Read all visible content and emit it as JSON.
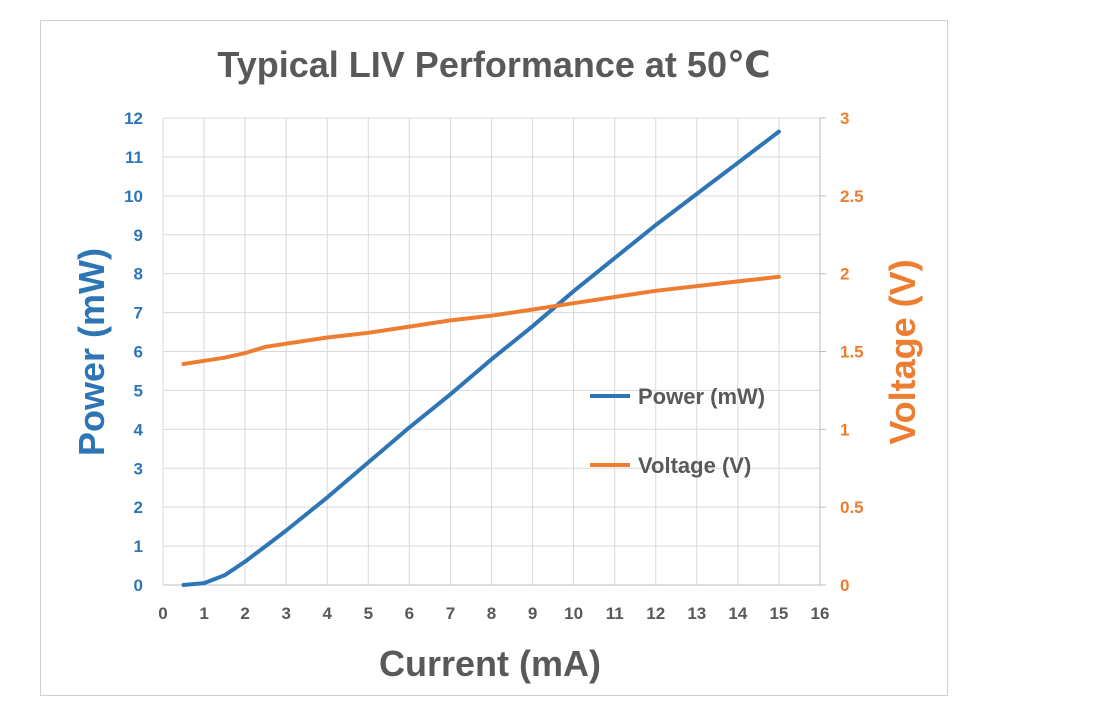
{
  "chart_data": {
    "type": "line",
    "title": "Typical LIV Performance at 50℃",
    "xlabel": "Current (mA)",
    "ylabel_left": "Power (mW)",
    "ylabel_right": "Voltage (V)",
    "xlim": [
      0,
      16
    ],
    "ylim_left": [
      0,
      12
    ],
    "ylim_right": [
      0,
      3
    ],
    "xticks": [
      "0",
      "1",
      "2",
      "3",
      "4",
      "5",
      "6",
      "7",
      "8",
      "9",
      "10",
      "11",
      "12",
      "13",
      "14",
      "15",
      "16"
    ],
    "yticks_left": [
      "0",
      "1",
      "2",
      "3",
      "4",
      "5",
      "6",
      "7",
      "8",
      "9",
      "10",
      "11",
      "12"
    ],
    "yticks_right": [
      "0",
      "0.5",
      "1",
      "1.5",
      "2",
      "2.5",
      "3"
    ],
    "grid": true,
    "legend_position": "center-right",
    "series": [
      {
        "name": "Power (mW)",
        "axis": "left",
        "color": "#2E75B6",
        "x": [
          0.5,
          1,
          1.5,
          2,
          2.5,
          3,
          4,
          5,
          6,
          7,
          8,
          9,
          10,
          11,
          12,
          13,
          14,
          15
        ],
        "values": [
          0.0,
          0.05,
          0.25,
          0.6,
          1.0,
          1.4,
          2.25,
          3.15,
          4.05,
          4.9,
          5.8,
          6.65,
          7.55,
          8.4,
          9.25,
          10.05,
          10.85,
          11.65
        ]
      },
      {
        "name": "Voltage (V)",
        "axis": "right",
        "color": "#ED7D31",
        "x": [
          0.5,
          1,
          1.5,
          2,
          2.5,
          3,
          4,
          5,
          6,
          7,
          8,
          9,
          10,
          11,
          12,
          13,
          14,
          15
        ],
        "values": [
          1.42,
          1.44,
          1.46,
          1.49,
          1.53,
          1.55,
          1.59,
          1.62,
          1.66,
          1.7,
          1.73,
          1.77,
          1.81,
          1.85,
          1.89,
          1.92,
          1.95,
          1.98
        ]
      }
    ]
  }
}
